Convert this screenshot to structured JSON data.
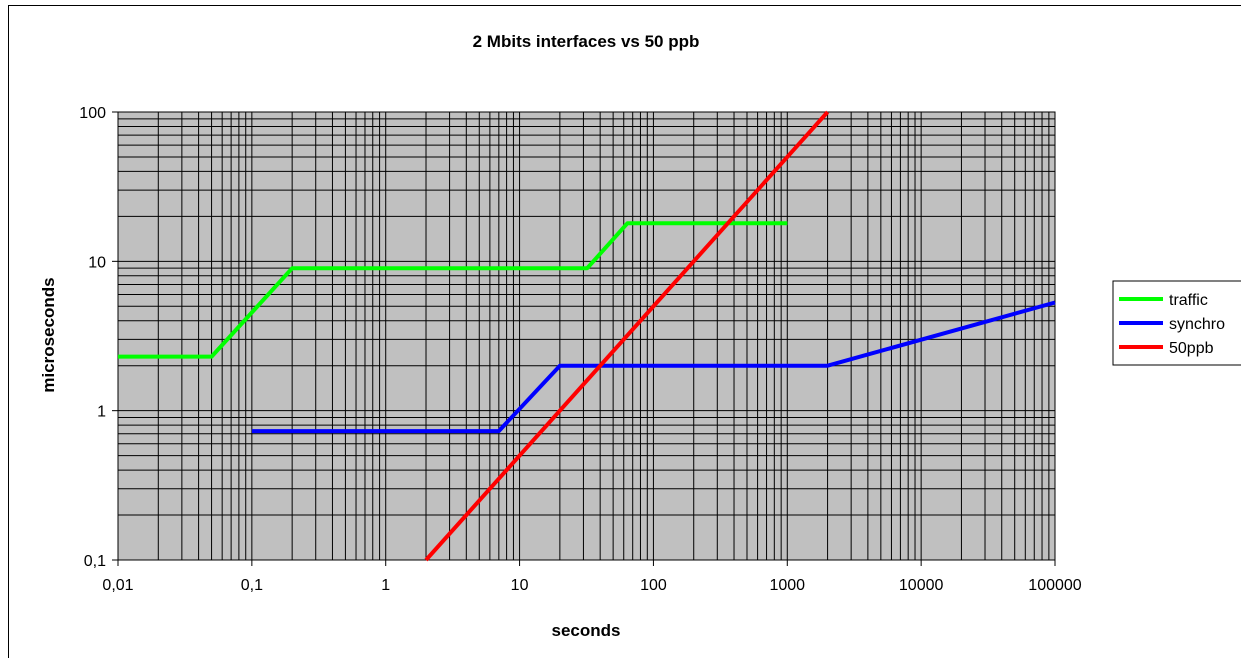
{
  "chart_data": {
    "type": "line",
    "title": "2 Mbits interfaces vs 50 ppb",
    "xlabel": "seconds",
    "ylabel": "microseconds",
    "x_scale": "log",
    "y_scale": "log",
    "xlim": [
      0.01,
      100000
    ],
    "ylim": [
      0.1,
      100
    ],
    "x_tick_labels": [
      "0,01",
      "0,1",
      "1",
      "10",
      "100",
      "1000",
      "10000",
      "100000"
    ],
    "y_tick_labels": [
      "0,1",
      "1",
      "10",
      "100"
    ],
    "grid": true,
    "legend_position": "right",
    "plot_background": "#c0c0c0",
    "series": [
      {
        "name": "traffic",
        "color": "#00ff00",
        "points": [
          [
            0.01,
            2.3
          ],
          [
            0.05,
            2.3
          ],
          [
            0.2,
            9
          ],
          [
            32,
            9
          ],
          [
            64,
            18
          ],
          [
            1000,
            18
          ]
        ]
      },
      {
        "name": "synchro",
        "color": "#0000ff",
        "points": [
          [
            0.1,
            0.73
          ],
          [
            7,
            0.73
          ],
          [
            20,
            2
          ],
          [
            2000,
            2
          ],
          [
            100000,
            5.3
          ]
        ]
      },
      {
        "name": "50ppb",
        "color": "#ff0000",
        "points": [
          [
            2,
            0.1
          ],
          [
            2000,
            100
          ]
        ]
      }
    ]
  }
}
